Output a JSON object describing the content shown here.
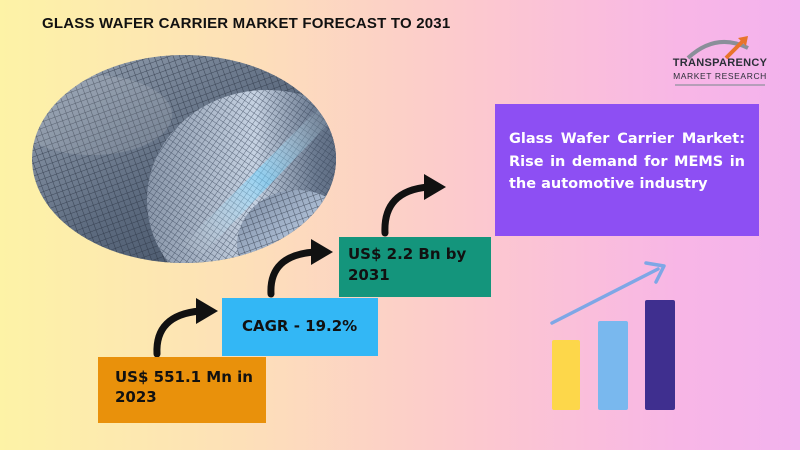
{
  "header": {
    "title": "GLASS WAFER CARRIER MARKET FORECAST TO 2031"
  },
  "logo": {
    "line1": "TRANSPARENCY",
    "line2": "MARKET RESEARCH"
  },
  "stats": {
    "base_value_line1": "US$ 551.1 Mn in",
    "base_value_line2": "2023",
    "cagr": "CAGR - 19.2%",
    "forecast_line1": "US$ 2.2 Bn by",
    "forecast_line2": "2031"
  },
  "highlight": {
    "text": "Glass Wafer Carrier Market: Rise in demand for MEMS in the automotive industry"
  },
  "colors": {
    "box_2023": "#e9910b",
    "box_cagr": "#33b7f5",
    "box_2031": "#14957c",
    "box_highlight": "#8d4ff3",
    "bar_1": "#fdd74a",
    "bar_2": "#79b8ee",
    "bar_3": "#3f2f8f",
    "trend_arrow": "#7ea7e6"
  },
  "icons": [
    "curved-arrow-icon",
    "growth-chart-icon",
    "wafer-image"
  ]
}
